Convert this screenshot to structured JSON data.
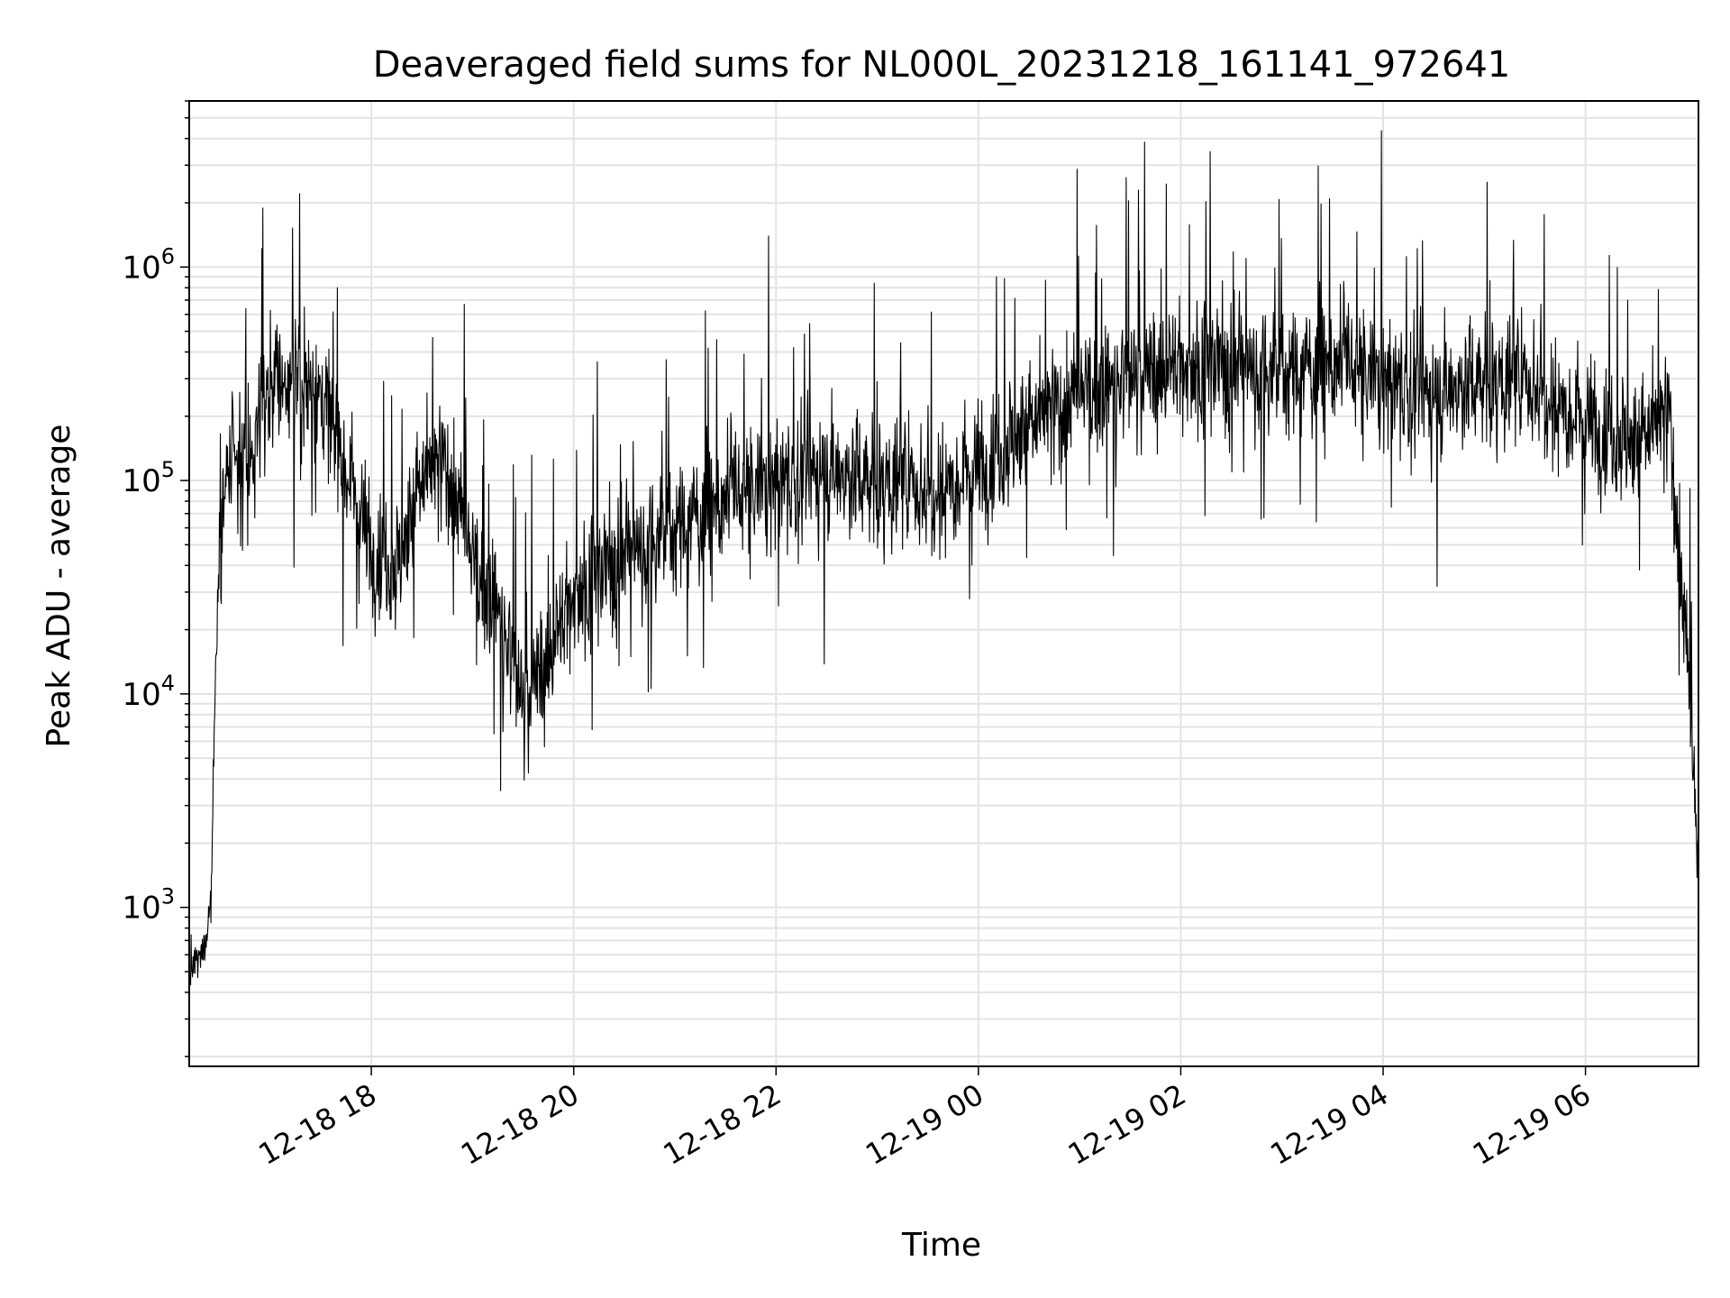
{
  "chart_data": {
    "type": "line",
    "title": "Deaveraged field sums for NL000L_20231218_161141_972641",
    "xlabel": "Time",
    "ylabel": "Peak ADU - average",
    "y_scale": "log",
    "ylim": [
      180,
      6000000
    ],
    "xlim": [
      "2023-12-18T16:12",
      "2023-12-19T07:07"
    ],
    "x_ticks": [
      "2023-12-18T18:00",
      "2023-12-18T20:00",
      "2023-12-18T22:00",
      "2023-12-19T00:00",
      "2023-12-19T02:00",
      "2023-12-19T04:00",
      "2023-12-19T06:00"
    ],
    "x_tick_labels": [
      "12-18 18",
      "12-18 20",
      "12-18 22",
      "12-19 00",
      "12-19 02",
      "12-19 04",
      "12-19 06"
    ],
    "y_ticks": [
      1000,
      10000,
      100000,
      1000000
    ],
    "y_tick_labels": [
      {
        "base": "10",
        "exp": "3"
      },
      {
        "base": "10",
        "exp": "4"
      },
      {
        "base": "10",
        "exp": "5"
      },
      {
        "base": "10",
        "exp": "6"
      }
    ],
    "grid": true,
    "series_color": "#000000",
    "grid_color": "#e3e3e3",
    "series": [
      {
        "x": [
          "2023-12-18T16:12",
          "2023-12-18T16:20",
          "2023-12-18T16:25",
          "2023-12-18T16:27",
          "2023-12-18T16:30",
          "2023-12-18T16:35",
          "2023-12-18T16:45",
          "2023-12-18T17:00",
          "2023-12-18T17:15",
          "2023-12-18T17:30",
          "2023-12-18T17:45",
          "2023-12-18T18:00",
          "2023-12-18T18:15",
          "2023-12-18T18:30",
          "2023-12-18T18:45",
          "2023-12-18T19:00",
          "2023-12-18T19:15",
          "2023-12-18T19:30",
          "2023-12-18T19:45",
          "2023-12-18T20:00",
          "2023-12-18T20:30",
          "2023-12-18T21:00",
          "2023-12-18T21:30",
          "2023-12-18T22:00",
          "2023-12-18T22:30",
          "2023-12-18T23:00",
          "2023-12-18T23:30",
          "2023-12-19T00:00",
          "2023-12-19T00:30",
          "2023-12-19T01:00",
          "2023-12-19T01:30",
          "2023-12-19T02:00",
          "2023-12-19T02:30",
          "2023-12-19T03:00",
          "2023-12-19T03:30",
          "2023-12-19T04:00",
          "2023-12-19T04:30",
          "2023-12-19T05:00",
          "2023-12-19T05:30",
          "2023-12-19T06:00",
          "2023-12-19T06:30",
          "2023-12-19T06:50",
          "2023-12-19T07:00",
          "2023-12-19T07:07"
        ],
        "y": [
          500,
          600,
          1100,
          8000,
          60000,
          110000,
          100000,
          300000,
          300000,
          250000,
          120000,
          50000,
          40000,
          100000,
          120000,
          40000,
          25000,
          9000,
          15000,
          30000,
          45000,
          60000,
          80000,
          100000,
          110000,
          100000,
          90000,
          120000,
          180000,
          250000,
          300000,
          350000,
          350000,
          320000,
          350000,
          300000,
          250000,
          300000,
          280000,
          200000,
          150000,
          200000,
          15000,
          1500
        ]
      }
    ]
  }
}
